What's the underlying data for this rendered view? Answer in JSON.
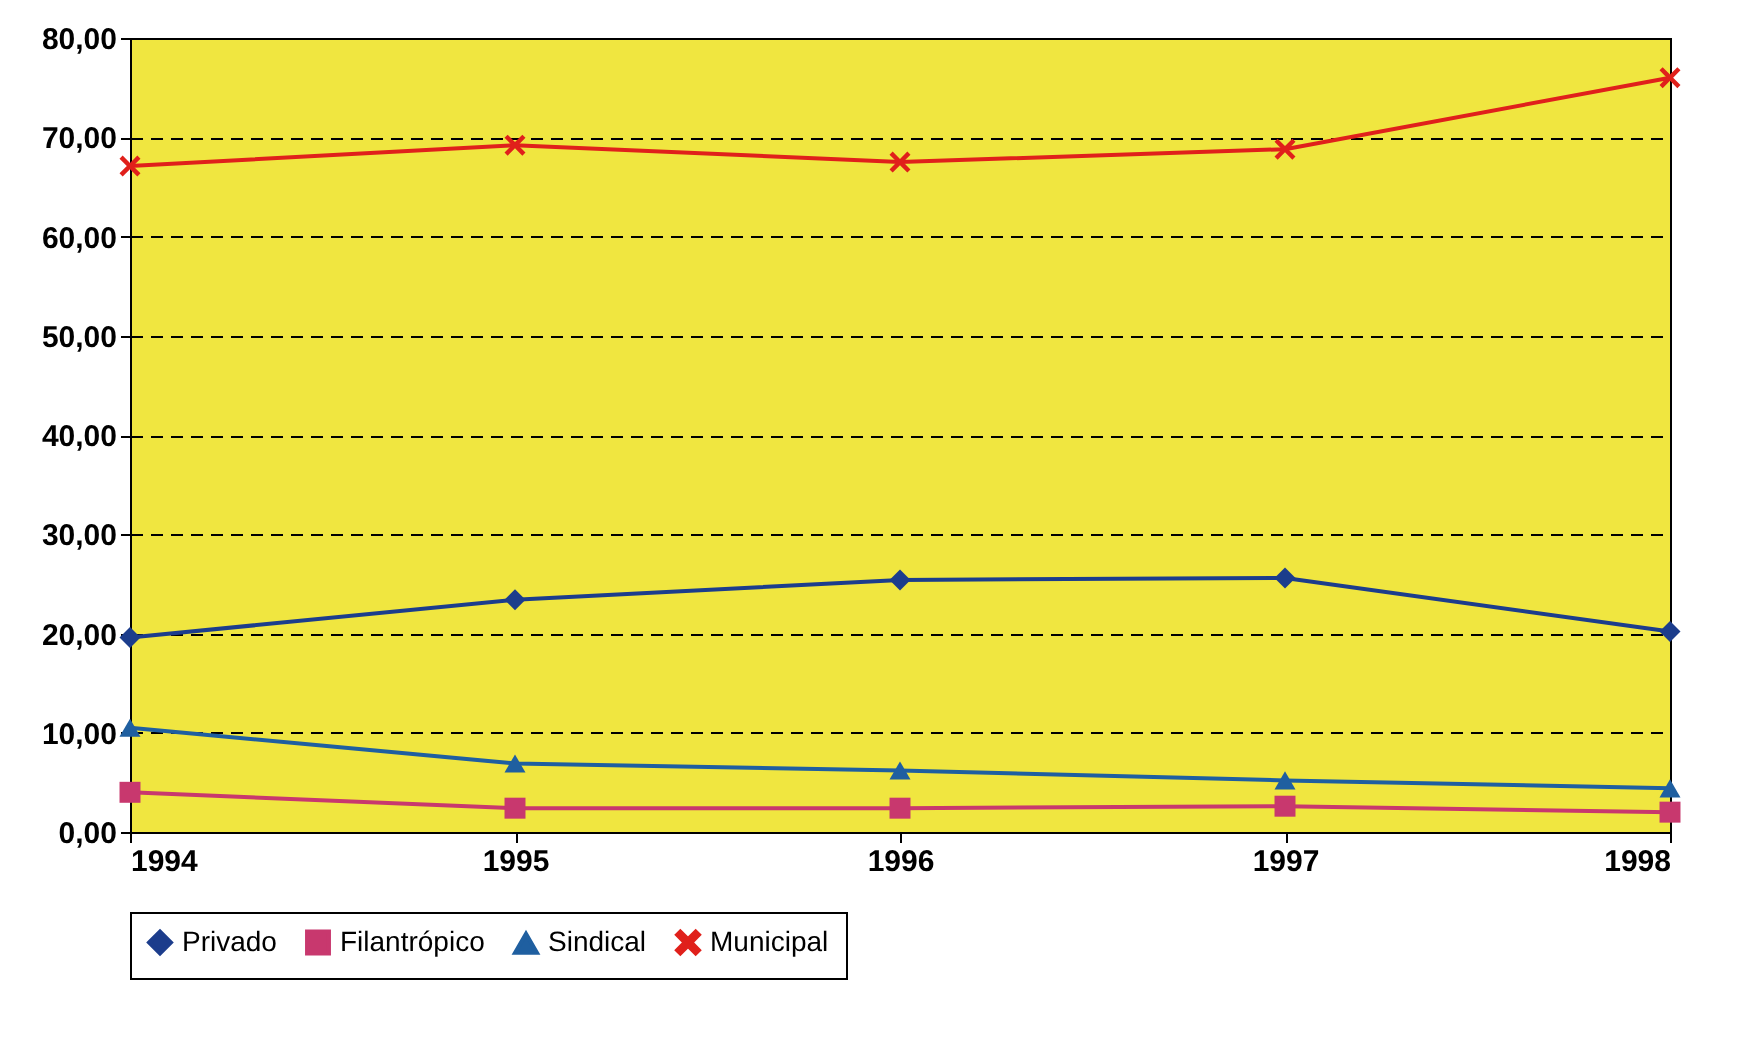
{
  "chart_data": {
    "type": "line",
    "x": [
      1994,
      1995,
      1996,
      1997,
      1998
    ],
    "xlim": [
      1994,
      1998
    ],
    "xticks": [
      1994,
      1995,
      1996,
      1997,
      1998
    ],
    "ylim": [
      0,
      80
    ],
    "yticks": [
      {
        "value": 0,
        "label": "0,00"
      },
      {
        "value": 10,
        "label": "10,00"
      },
      {
        "value": 20,
        "label": "20,00"
      },
      {
        "value": 30,
        "label": "30,00"
      },
      {
        "value": 40,
        "label": "40,00"
      },
      {
        "value": 50,
        "label": "50,00"
      },
      {
        "value": 60,
        "label": "60,00"
      },
      {
        "value": 70,
        "label": "70,00"
      },
      {
        "value": 80,
        "label": "80,00"
      }
    ],
    "grid": "y",
    "legend": "bottom",
    "line_style": "solid",
    "series": [
      {
        "name": "Privado",
        "color": "#1c3d8c",
        "marker": "diamond",
        "values": [
          19.6,
          23.4,
          25.4,
          25.6,
          20.2
        ]
      },
      {
        "name": "Filantrópico",
        "color": "#c8386e",
        "marker": "square",
        "values": [
          4.0,
          2.4,
          2.4,
          2.6,
          2.0
        ]
      },
      {
        "name": "Sindical",
        "color": "#1f5fa0",
        "marker": "triangle",
        "values": [
          10.5,
          6.9,
          6.2,
          5.2,
          4.4
        ]
      },
      {
        "name": "Municipal",
        "color": "#e0201b",
        "marker": "cross",
        "values": [
          67.1,
          69.2,
          67.5,
          68.8,
          76.0
        ]
      }
    ]
  }
}
